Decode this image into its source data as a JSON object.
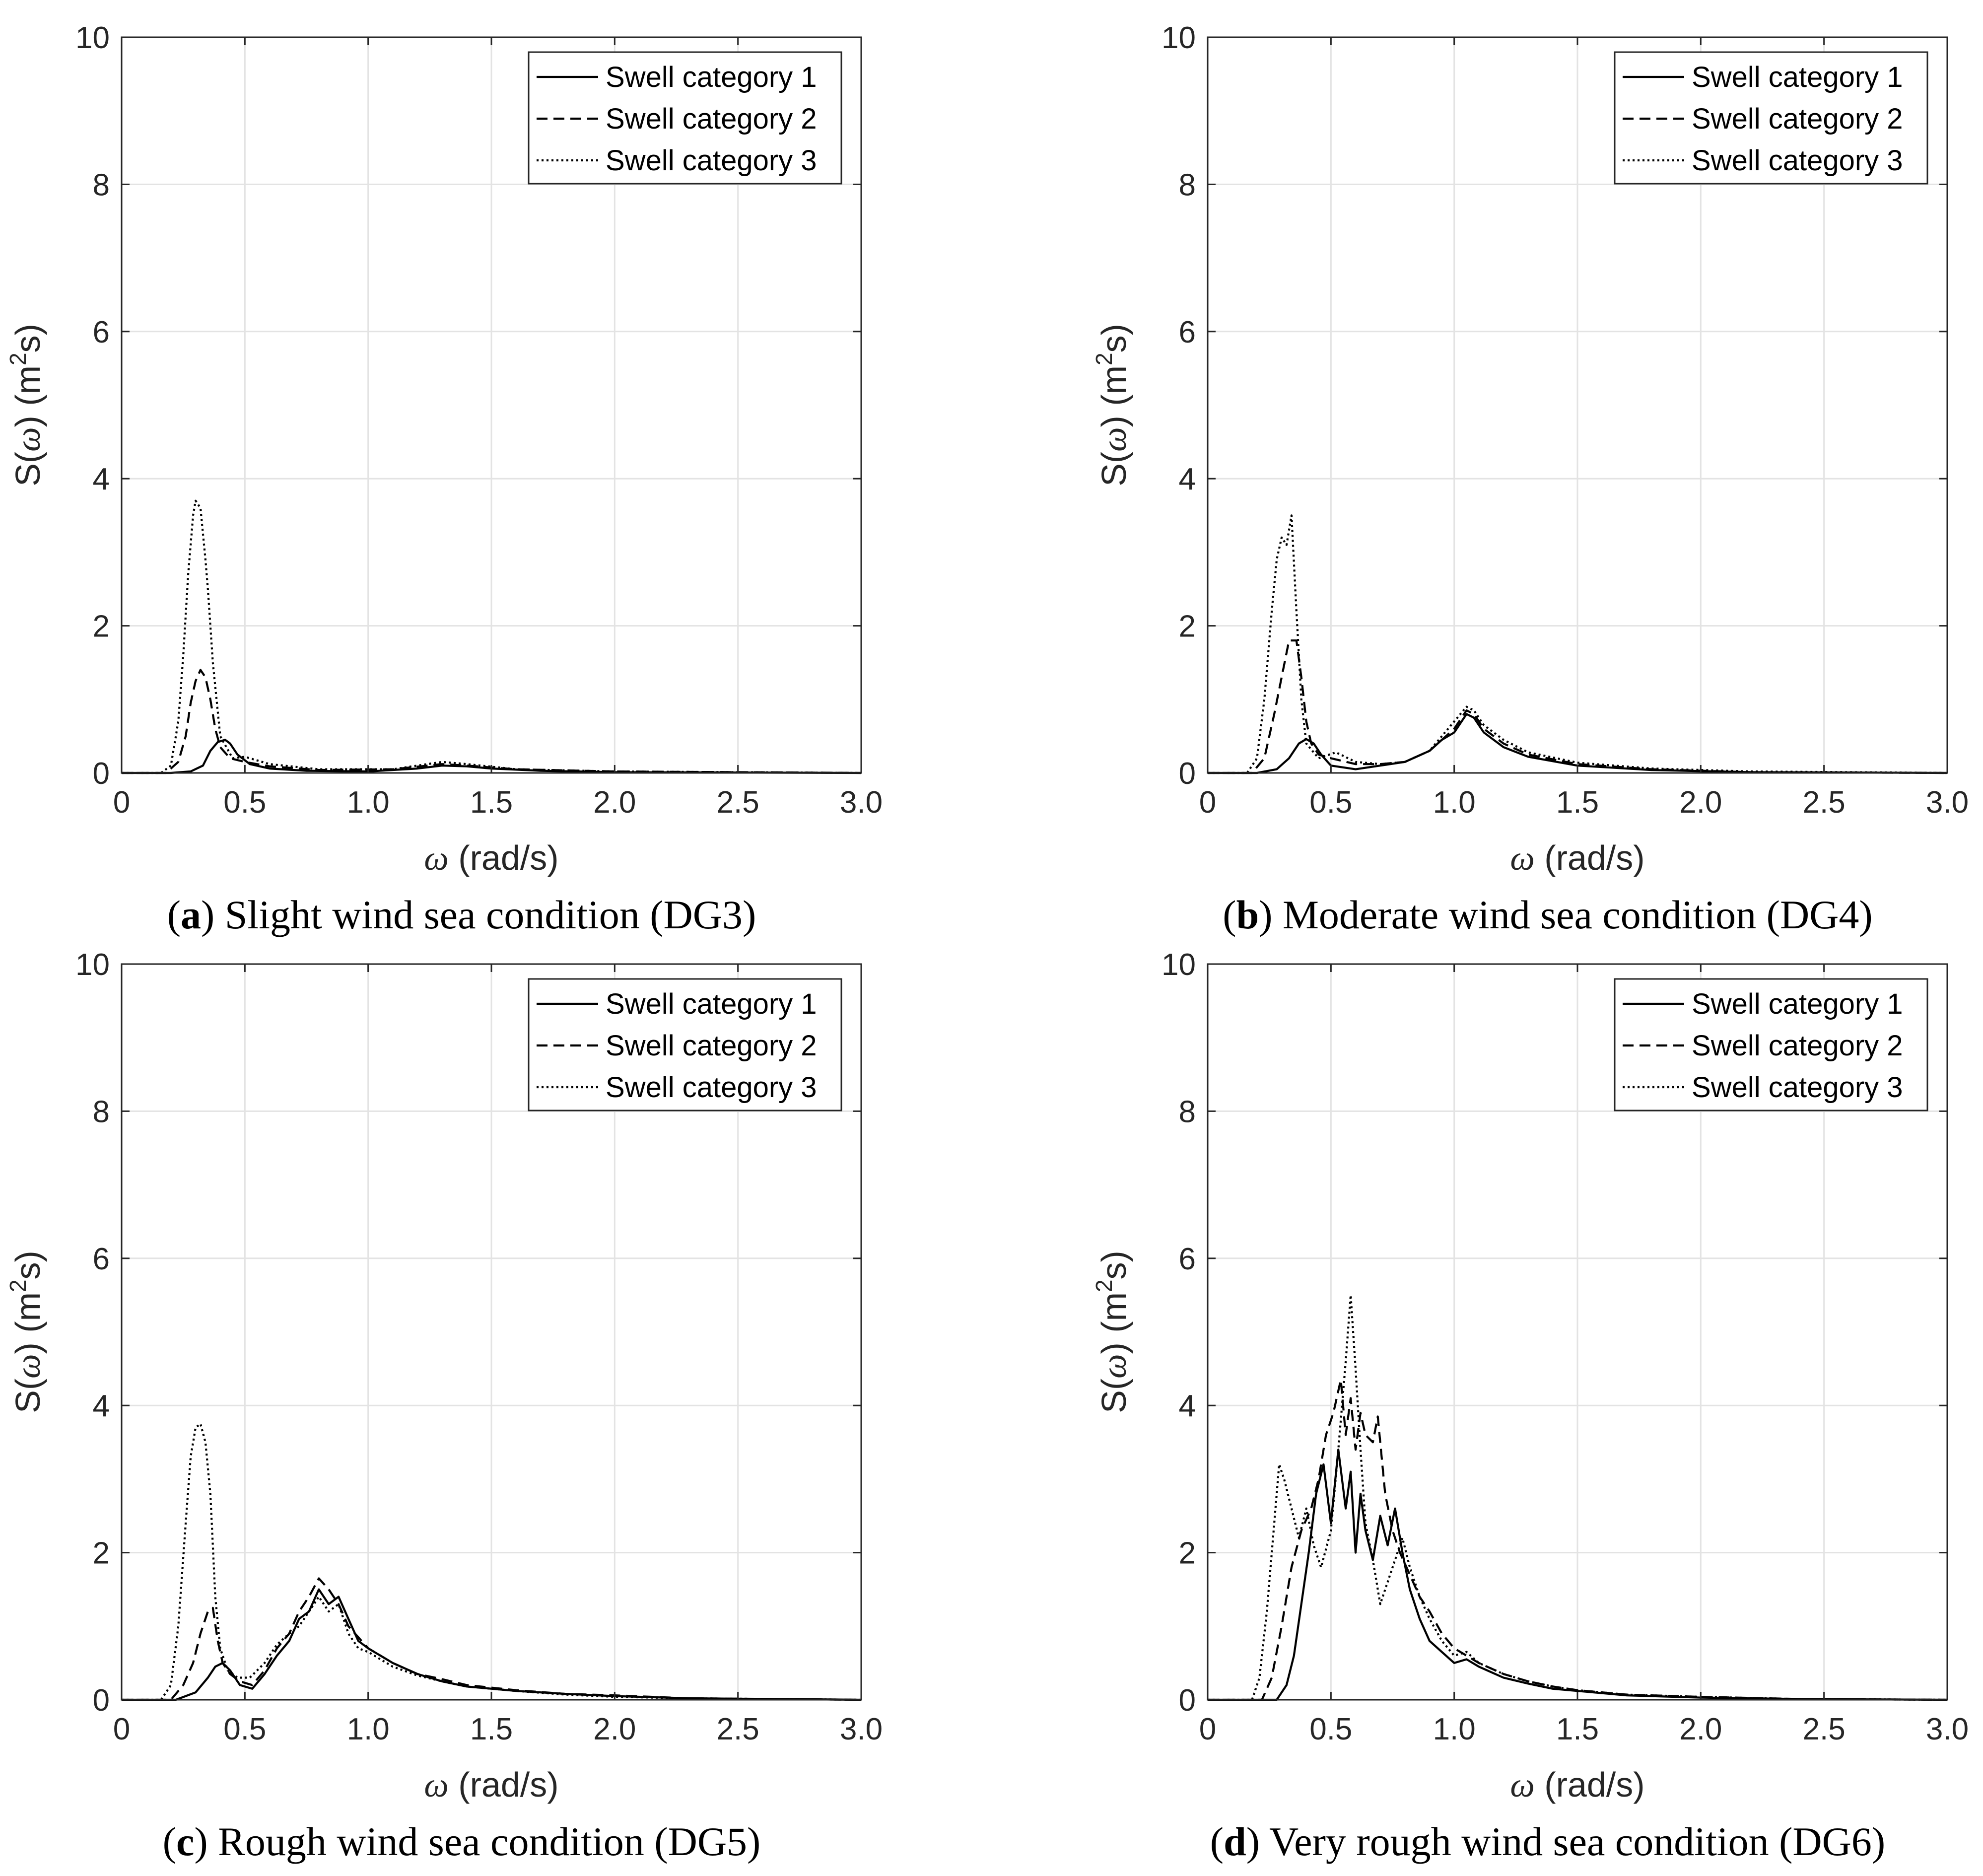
{
  "chart_data": [
    {
      "panel": "a",
      "type": "line",
      "caption_label": "a",
      "caption_text": "Slight wind sea condition (DG3)",
      "xlabel_sym": "ω",
      "xlabel_unit": "(rad/s)",
      "ylabel": "S(ω) (m²s)",
      "ylabel_pre": "S(",
      "ylabel_sym": "ω",
      "ylabel_mid": ") (m",
      "ylabel_sup": "2",
      "ylabel_post": "s)",
      "xlim": [
        0,
        3.0
      ],
      "ylim": [
        0,
        10
      ],
      "xticks": [
        "0",
        "0.5",
        "1.0",
        "1.5",
        "2.0",
        "2.5",
        "3.0"
      ],
      "yticks": [
        "0",
        "2",
        "4",
        "6",
        "8",
        "10"
      ],
      "grid": true,
      "legend_position": "top-right",
      "series": [
        {
          "name": "Swell category 1",
          "style": "solid",
          "x": [
            0,
            0.2,
            0.28,
            0.33,
            0.36,
            0.39,
            0.42,
            0.44,
            0.47,
            0.52,
            0.6,
            0.75,
            1.0,
            1.2,
            1.3,
            1.4,
            1.5,
            1.7,
            2.0,
            3.0
          ],
          "y": [
            0,
            0,
            0.02,
            0.1,
            0.3,
            0.42,
            0.45,
            0.4,
            0.25,
            0.12,
            0.06,
            0.03,
            0.02,
            0.06,
            0.1,
            0.09,
            0.06,
            0.03,
            0.01,
            0
          ]
        },
        {
          "name": "Swell category 2",
          "style": "dashed",
          "x": [
            0,
            0.18,
            0.23,
            0.26,
            0.28,
            0.3,
            0.32,
            0.34,
            0.36,
            0.38,
            0.4,
            0.44,
            0.5,
            0.6,
            0.8,
            1.1,
            1.3,
            1.4,
            1.6,
            2.0,
            3.0
          ],
          "y": [
            0,
            0,
            0.15,
            0.5,
            0.95,
            1.25,
            1.4,
            1.3,
            1.0,
            0.6,
            0.35,
            0.2,
            0.15,
            0.09,
            0.04,
            0.05,
            0.12,
            0.1,
            0.05,
            0.02,
            0
          ]
        },
        {
          "name": "Swell category 3",
          "style": "dotted",
          "x": [
            0,
            0.16,
            0.2,
            0.23,
            0.25,
            0.27,
            0.29,
            0.3,
            0.32,
            0.34,
            0.35,
            0.37,
            0.4,
            0.45,
            0.5,
            0.6,
            0.8,
            1.1,
            1.3,
            1.4,
            1.6,
            2.0,
            3.0
          ],
          "y": [
            0,
            0,
            0.1,
            0.7,
            1.6,
            2.7,
            3.5,
            3.7,
            3.6,
            2.9,
            2.5,
            1.5,
            0.5,
            0.2,
            0.22,
            0.12,
            0.05,
            0.05,
            0.15,
            0.12,
            0.05,
            0.02,
            0
          ]
        }
      ]
    },
    {
      "panel": "b",
      "type": "line",
      "caption_label": "b",
      "caption_text": "Moderate wind sea condition (DG4)",
      "xlabel_sym": "ω",
      "xlabel_unit": "(rad/s)",
      "ylabel": "S(ω) (m²s)",
      "ylabel_pre": "S(",
      "ylabel_sym": "ω",
      "ylabel_mid": ") (m",
      "ylabel_sup": "2",
      "ylabel_post": "s)",
      "xlim": [
        0,
        3.0
      ],
      "ylim": [
        0,
        10
      ],
      "xticks": [
        "0",
        "0.5",
        "1.0",
        "1.5",
        "2.0",
        "2.5",
        "3.0"
      ],
      "yticks": [
        "0",
        "2",
        "4",
        "6",
        "8",
        "10"
      ],
      "grid": true,
      "legend_position": "top-right",
      "series": [
        {
          "name": "Swell category 1",
          "style": "solid",
          "x": [
            0,
            0.2,
            0.28,
            0.33,
            0.37,
            0.4,
            0.43,
            0.46,
            0.5,
            0.6,
            0.7,
            0.8,
            0.9,
            0.95,
            1.0,
            1.05,
            1.08,
            1.12,
            1.2,
            1.3,
            1.5,
            1.8,
            2.2,
            3.0
          ],
          "y": [
            0,
            0,
            0.05,
            0.2,
            0.4,
            0.46,
            0.4,
            0.25,
            0.1,
            0.05,
            0.1,
            0.15,
            0.3,
            0.45,
            0.55,
            0.8,
            0.75,
            0.55,
            0.35,
            0.22,
            0.1,
            0.04,
            0.01,
            0
          ]
        },
        {
          "name": "Swell category 2",
          "style": "dashed",
          "x": [
            0,
            0.18,
            0.23,
            0.27,
            0.3,
            0.33,
            0.36,
            0.38,
            0.4,
            0.42,
            0.45,
            0.5,
            0.6,
            0.7,
            0.8,
            0.9,
            0.95,
            1.0,
            1.05,
            1.08,
            1.12,
            1.2,
            1.3,
            1.5,
            1.8,
            2.2,
            3.0
          ],
          "y": [
            0,
            0,
            0.2,
            0.8,
            1.3,
            1.8,
            1.8,
            1.3,
            0.7,
            0.4,
            0.25,
            0.2,
            0.12,
            0.12,
            0.15,
            0.3,
            0.45,
            0.6,
            0.85,
            0.8,
            0.6,
            0.4,
            0.25,
            0.12,
            0.05,
            0.01,
            0
          ]
        },
        {
          "name": "Swell category 3",
          "style": "dotted",
          "x": [
            0,
            0.16,
            0.2,
            0.23,
            0.26,
            0.28,
            0.3,
            0.32,
            0.34,
            0.36,
            0.38,
            0.4,
            0.45,
            0.52,
            0.6,
            0.7,
            0.8,
            0.9,
            0.95,
            1.0,
            1.05,
            1.08,
            1.12,
            1.2,
            1.3,
            1.5,
            1.8,
            2.2,
            3.0
          ],
          "y": [
            0,
            0,
            0.2,
            1.0,
            2.2,
            2.9,
            3.2,
            3.1,
            3.5,
            2.2,
            1.0,
            0.4,
            0.2,
            0.28,
            0.15,
            0.12,
            0.15,
            0.3,
            0.5,
            0.7,
            0.9,
            0.85,
            0.65,
            0.45,
            0.28,
            0.14,
            0.06,
            0.02,
            0
          ]
        }
      ]
    },
    {
      "panel": "c",
      "type": "line",
      "caption_label": "c",
      "caption_text": "Rough wind sea condition (DG5)",
      "xlabel_sym": "ω",
      "xlabel_unit": "(rad/s)",
      "ylabel": "S(ω) (m²s)",
      "ylabel_pre": "S(",
      "ylabel_sym": "ω",
      "ylabel_mid": ") (m",
      "ylabel_sup": "2",
      "ylabel_post": "s)",
      "xlim": [
        0,
        3.0
      ],
      "ylim": [
        0,
        10
      ],
      "xticks": [
        "0",
        "0.5",
        "1.0",
        "1.5",
        "2.0",
        "2.5",
        "3.0"
      ],
      "yticks": [
        "0",
        "2",
        "4",
        "6",
        "8",
        "10"
      ],
      "grid": true,
      "legend_position": "top-right",
      "series": [
        {
          "name": "Swell category 1",
          "style": "solid",
          "x": [
            0,
            0.22,
            0.3,
            0.35,
            0.38,
            0.41,
            0.44,
            0.48,
            0.53,
            0.58,
            0.63,
            0.68,
            0.72,
            0.76,
            0.8,
            0.84,
            0.88,
            0.92,
            0.96,
            1.0,
            1.05,
            1.1,
            1.2,
            1.3,
            1.4,
            1.6,
            1.8,
            2.0,
            2.3,
            3.0
          ],
          "y": [
            0,
            0,
            0.1,
            0.3,
            0.45,
            0.5,
            0.4,
            0.2,
            0.15,
            0.35,
            0.6,
            0.8,
            1.1,
            1.2,
            1.5,
            1.3,
            1.4,
            1.1,
            0.8,
            0.7,
            0.6,
            0.5,
            0.35,
            0.25,
            0.18,
            0.12,
            0.08,
            0.05,
            0.02,
            0
          ]
        },
        {
          "name": "Swell category 2",
          "style": "dashed",
          "x": [
            0,
            0.2,
            0.25,
            0.29,
            0.32,
            0.35,
            0.37,
            0.39,
            0.41,
            0.44,
            0.48,
            0.53,
            0.58,
            0.63,
            0.68,
            0.72,
            0.76,
            0.8,
            0.84,
            0.88,
            0.92,
            0.96,
            1.0,
            1.05,
            1.1,
            1.2,
            1.3,
            1.4,
            1.6,
            1.8,
            2.0,
            2.3,
            3.0
          ],
          "y": [
            0,
            0,
            0.2,
            0.5,
            0.9,
            1.2,
            1.25,
            0.8,
            0.5,
            0.35,
            0.25,
            0.2,
            0.4,
            0.7,
            0.9,
            1.2,
            1.4,
            1.65,
            1.5,
            1.3,
            1.0,
            0.85,
            0.7,
            0.6,
            0.5,
            0.35,
            0.28,
            0.2,
            0.13,
            0.08,
            0.06,
            0.02,
            0
          ]
        },
        {
          "name": "Swell category 3",
          "style": "dotted",
          "x": [
            0,
            0.16,
            0.2,
            0.23,
            0.26,
            0.28,
            0.3,
            0.32,
            0.34,
            0.36,
            0.38,
            0.4,
            0.43,
            0.47,
            0.52,
            0.58,
            0.63,
            0.68,
            0.72,
            0.76,
            0.8,
            0.84,
            0.88,
            0.92,
            0.96,
            1.0,
            1.05,
            1.1,
            1.2,
            1.3,
            1.4,
            1.6,
            1.8,
            2.0,
            2.3,
            3.0
          ],
          "y": [
            0,
            0,
            0.2,
            1.0,
            2.4,
            3.3,
            3.7,
            3.75,
            3.5,
            2.8,
            1.4,
            0.7,
            0.4,
            0.3,
            0.3,
            0.5,
            0.75,
            0.9,
            1.0,
            1.2,
            1.4,
            1.2,
            1.3,
            0.9,
            0.7,
            0.65,
            0.55,
            0.45,
            0.33,
            0.25,
            0.18,
            0.12,
            0.07,
            0.04,
            0.02,
            0
          ]
        }
      ]
    },
    {
      "panel": "d",
      "type": "line",
      "caption_label": "d",
      "caption_text": "Very rough wind sea condition (DG6)",
      "xlabel_sym": "ω",
      "xlabel_unit": "(rad/s)",
      "ylabel": "S(ω) (m²s)",
      "ylabel_pre": "S(",
      "ylabel_sym": "ω",
      "ylabel_mid": ") (m",
      "ylabel_sup": "2",
      "ylabel_post": "s)",
      "xlim": [
        0,
        3.0
      ],
      "ylim": [
        0,
        10
      ],
      "xticks": [
        "0",
        "0.5",
        "1.0",
        "1.5",
        "2.0",
        "2.5",
        "3.0"
      ],
      "yticks": [
        "0",
        "2",
        "4",
        "6",
        "8",
        "10"
      ],
      "grid": true,
      "legend_position": "top-right",
      "series": [
        {
          "name": "Swell category 1",
          "style": "solid",
          "x": [
            0,
            0.28,
            0.32,
            0.35,
            0.38,
            0.41,
            0.44,
            0.47,
            0.5,
            0.53,
            0.56,
            0.58,
            0.6,
            0.62,
            0.64,
            0.67,
            0.7,
            0.73,
            0.76,
            0.79,
            0.82,
            0.86,
            0.9,
            0.95,
            1.0,
            1.05,
            1.1,
            1.2,
            1.3,
            1.4,
            1.5,
            1.7,
            2.0,
            2.4,
            3.0
          ],
          "y": [
            0,
            0,
            0.2,
            0.6,
            1.3,
            2.0,
            2.8,
            3.2,
            2.4,
            3.4,
            2.6,
            3.1,
            2.0,
            2.8,
            2.3,
            1.9,
            2.5,
            2.1,
            2.6,
            2.0,
            1.5,
            1.1,
            0.8,
            0.65,
            0.5,
            0.55,
            0.45,
            0.3,
            0.22,
            0.15,
            0.12,
            0.06,
            0.03,
            0.01,
            0
          ]
        },
        {
          "name": "Swell category 2",
          "style": "dashed",
          "x": [
            0,
            0.22,
            0.26,
            0.3,
            0.34,
            0.38,
            0.42,
            0.45,
            0.48,
            0.51,
            0.54,
            0.56,
            0.58,
            0.6,
            0.62,
            0.64,
            0.67,
            0.69,
            0.72,
            0.75,
            0.78,
            0.82,
            0.86,
            0.9,
            0.95,
            1.0,
            1.05,
            1.1,
            1.2,
            1.3,
            1.4,
            1.5,
            1.7,
            2.0,
            2.4,
            3.0
          ],
          "y": [
            0,
            0,
            0.3,
            1.0,
            1.8,
            2.3,
            2.6,
            3.0,
            3.6,
            3.9,
            4.35,
            3.6,
            4.1,
            3.4,
            3.9,
            3.6,
            3.5,
            3.85,
            2.8,
            2.3,
            2.0,
            1.7,
            1.4,
            1.2,
            0.9,
            0.7,
            0.6,
            0.5,
            0.35,
            0.25,
            0.18,
            0.13,
            0.07,
            0.04,
            0.01,
            0
          ]
        },
        {
          "name": "Swell category 3",
          "style": "dotted",
          "x": [
            0,
            0.18,
            0.21,
            0.24,
            0.27,
            0.29,
            0.31,
            0.34,
            0.37,
            0.4,
            0.43,
            0.46,
            0.5,
            0.53,
            0.56,
            0.58,
            0.6,
            0.62,
            0.64,
            0.67,
            0.7,
            0.73,
            0.76,
            0.79,
            0.82,
            0.86,
            0.9,
            0.95,
            1.0,
            1.05,
            1.1,
            1.2,
            1.3,
            1.4,
            1.5,
            1.7,
            2.0,
            2.4,
            3.0
          ],
          "y": [
            0,
            0,
            0.3,
            1.2,
            2.4,
            3.2,
            3.0,
            2.6,
            2.2,
            2.6,
            2.1,
            1.8,
            2.3,
            3.4,
            4.6,
            5.5,
            4.5,
            3.4,
            2.4,
            1.9,
            1.3,
            1.6,
            1.9,
            2.2,
            1.8,
            1.4,
            1.1,
            0.8,
            0.6,
            0.65,
            0.5,
            0.35,
            0.25,
            0.18,
            0.13,
            0.07,
            0.04,
            0.01,
            0
          ]
        }
      ]
    }
  ]
}
